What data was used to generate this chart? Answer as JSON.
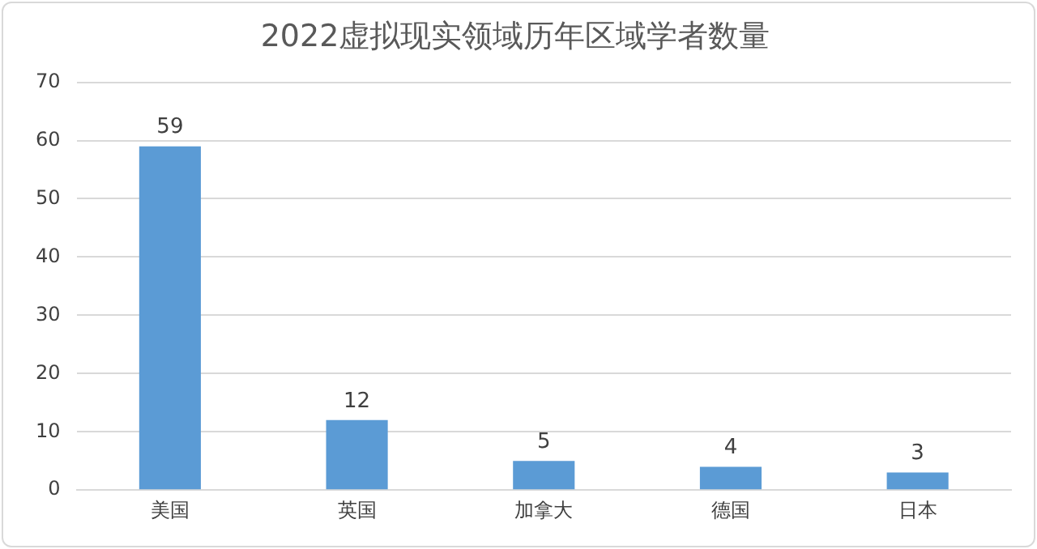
{
  "chart_data": {
    "type": "bar",
    "title": "2022虚拟现实领域历年区域学者数量",
    "categories": [
      "美国",
      "英国",
      "加拿大",
      "德国",
      "日本"
    ],
    "values": [
      59,
      12,
      5,
      4,
      3
    ],
    "color": "#5b9bd5",
    "ylim": [
      0,
      70
    ],
    "yticks": [
      0,
      10,
      20,
      30,
      40,
      50,
      60,
      70
    ],
    "grid": "y",
    "data_labels": true
  }
}
